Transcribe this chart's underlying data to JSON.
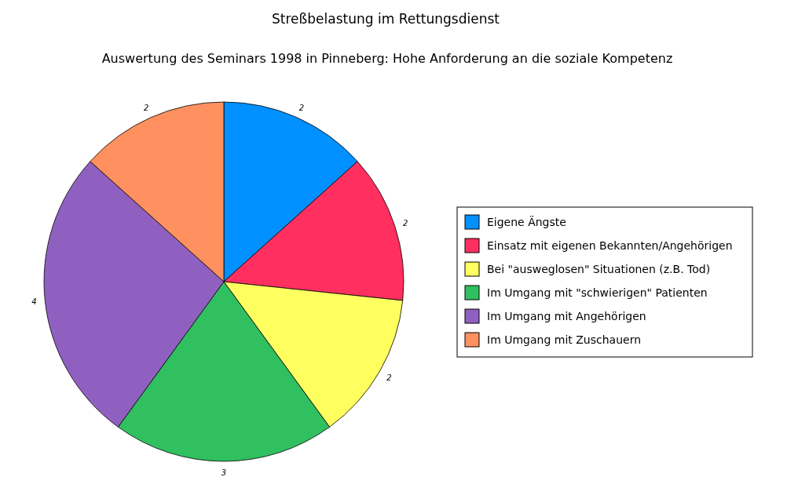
{
  "chart_data": {
    "type": "pie",
    "title": "Streßbelastung im Rettungsdienst",
    "subtitle": "Auswertung des Seminars 1998 in Pinneberg: Hohe Anforderung an die soziale Kompetenz",
    "categories": [
      "Eigene Ängste",
      "Einsatz mit eigenen Bekannten/Angehörigen",
      "Bei \"ausweglosen\" Situationen (z.B. Tod)",
      "Im Umgang mit \"schwierigen\" Patienten",
      "Im Umgang mit Angehörigen",
      "Im Umgang mit Zuschauern"
    ],
    "values": [
      2,
      2,
      2,
      3,
      4,
      2
    ],
    "colors": [
      "#0090ff",
      "#ff3060",
      "#ffff60",
      "#30c060",
      "#9060c0",
      "#ff9060"
    ],
    "data_labels": true,
    "legend": "right"
  }
}
